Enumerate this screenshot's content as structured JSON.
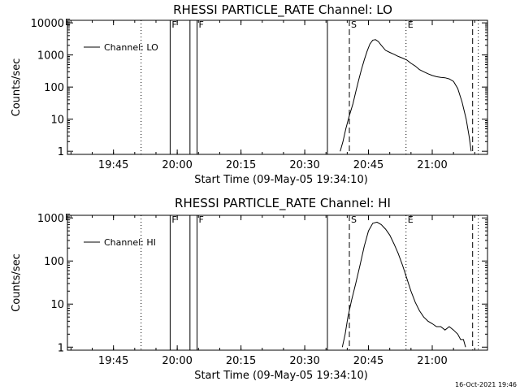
{
  "timestamp": "16-Oct-2021 19:46",
  "chart_data": [
    {
      "type": "line",
      "title": "RHESSI PARTICLE_RATE Channel: LO",
      "xlabel": "Start Time (09-May-05 19:34:10)",
      "ylabel": "Counts/sec",
      "xlim": [
        "19:34:10",
        "21:13:00"
      ],
      "ylim": [
        0.8,
        12000
      ],
      "yscale": "log",
      "x_ticks": [
        "19:45",
        "20:00",
        "20:15",
        "20:30",
        "20:45",
        "21:00"
      ],
      "y_ticks": [
        {
          "value": 1,
          "label": "1"
        },
        {
          "value": 10,
          "label": "10"
        },
        {
          "value": 100,
          "label": "100"
        },
        {
          "value": 1000,
          "label": "1000"
        },
        {
          "value": 10000,
          "label": "10000"
        }
      ],
      "legend": {
        "label": "Channel: LO",
        "placement": "top-left"
      },
      "markers": [
        {
          "time": "19:51:30",
          "style": "dotted",
          "label": ""
        },
        {
          "time": "19:58:20",
          "style": "solid",
          "label": "F"
        },
        {
          "time": "20:03:00",
          "style": "solid",
          "label": ""
        },
        {
          "time": "20:04:40",
          "style": "solid",
          "label": "F"
        },
        {
          "time": "20:35:20",
          "style": "solid",
          "label": ""
        },
        {
          "time": "20:40:30",
          "style": "dashed",
          "label": "S"
        },
        {
          "time": "20:53:50",
          "style": "dotted",
          "label": "E"
        },
        {
          "time": "21:09:30",
          "style": "dashed",
          "label": ""
        },
        {
          "time": "21:10:50",
          "style": "dotted",
          "label": ""
        }
      ],
      "edge_labels": [
        {
          "time": "19:34:10",
          "label": "E"
        }
      ],
      "series": [
        {
          "x": [
            "20:38:20",
            "20:39:00",
            "20:39:40",
            "20:40:30",
            "20:41:20",
            "20:42:00",
            "20:42:40",
            "20:43:20",
            "20:44:00",
            "20:44:40",
            "20:45:20",
            "20:46:00",
            "20:46:40",
            "20:47:20",
            "20:48:00",
            "20:49:00",
            "20:50:00",
            "20:51:00",
            "20:52:00",
            "20:53:00",
            "20:54:00",
            "20:55:00",
            "20:56:00",
            "20:57:00",
            "20:58:00",
            "20:59:00",
            "21:00:00",
            "21:01:00",
            "21:02:00",
            "21:03:00",
            "21:04:00",
            "21:05:00",
            "21:06:00",
            "21:07:00",
            "21:08:00",
            "21:08:40",
            "21:09:10"
          ],
          "y": [
            1,
            2,
            5,
            13,
            30,
            70,
            160,
            350,
            700,
            1300,
            2200,
            2900,
            3000,
            2600,
            2000,
            1400,
            1200,
            1050,
            900,
            800,
            700,
            550,
            450,
            350,
            300,
            260,
            230,
            210,
            200,
            195,
            180,
            150,
            90,
            35,
            10,
            3,
            1
          ]
        }
      ]
    },
    {
      "type": "line",
      "title": "RHESSI PARTICLE_RATE Channel: HI",
      "xlabel": "Start Time (09-May-05 19:34:10)",
      "ylabel": "Counts/sec",
      "xlim": [
        "19:34:10",
        "21:13:00"
      ],
      "ylim": [
        0.85,
        1150
      ],
      "yscale": "log",
      "x_ticks": [
        "19:45",
        "20:00",
        "20:15",
        "20:30",
        "20:45",
        "21:00"
      ],
      "y_ticks": [
        {
          "value": 1,
          "label": "1"
        },
        {
          "value": 10,
          "label": "10"
        },
        {
          "value": 100,
          "label": "100"
        },
        {
          "value": 1000,
          "label": "1000"
        }
      ],
      "legend": {
        "label": "Channel: HI",
        "placement": "top-left"
      },
      "markers": [
        {
          "time": "19:51:30",
          "style": "dotted",
          "label": ""
        },
        {
          "time": "19:58:20",
          "style": "solid",
          "label": "F"
        },
        {
          "time": "20:03:00",
          "style": "solid",
          "label": ""
        },
        {
          "time": "20:04:40",
          "style": "solid",
          "label": "F"
        },
        {
          "time": "20:35:20",
          "style": "solid",
          "label": ""
        },
        {
          "time": "20:40:30",
          "style": "dashed",
          "label": "S"
        },
        {
          "time": "20:53:50",
          "style": "dotted",
          "label": "E"
        },
        {
          "time": "21:09:30",
          "style": "dashed",
          "label": ""
        },
        {
          "time": "21:10:50",
          "style": "dotted",
          "label": ""
        }
      ],
      "edge_labels": [
        {
          "time": "19:34:10",
          "label": "E"
        }
      ],
      "series": [
        {
          "x": [
            "20:38:50",
            "20:39:30",
            "20:40:10",
            "20:41:00",
            "20:42:00",
            "20:43:00",
            "20:44:00",
            "20:45:00",
            "20:46:00",
            "20:47:00",
            "20:48:00",
            "20:49:00",
            "20:50:00",
            "20:51:00",
            "20:52:00",
            "20:53:00",
            "20:54:00",
            "20:55:00",
            "20:56:00",
            "20:57:00",
            "20:58:00",
            "20:59:00",
            "21:00:00",
            "21:01:00",
            "21:02:00",
            "21:03:00",
            "21:04:00",
            "21:05:00",
            "21:06:00",
            "21:06:40",
            "21:07:20",
            "21:07:50"
          ],
          "y": [
            1,
            2,
            5,
            12,
            30,
            80,
            220,
            500,
            750,
            800,
            700,
            550,
            400,
            250,
            150,
            80,
            40,
            20,
            11,
            7,
            5,
            4,
            3.5,
            3,
            3,
            2.5,
            3,
            2.5,
            2,
            1.5,
            1.5,
            1
          ]
        }
      ]
    }
  ]
}
